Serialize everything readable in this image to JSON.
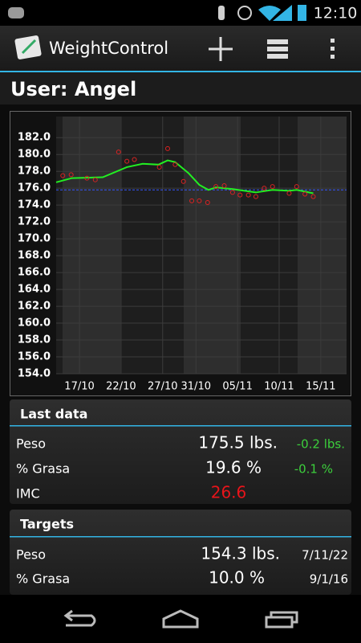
{
  "status_bar": {
    "time": "12:10"
  },
  "app_bar": {
    "title": "WeightControl"
  },
  "user": "User: Angel",
  "chart_data": {
    "type": "line",
    "xlim": [
      14.2,
      49.1
    ],
    "ylim": [
      154,
      184.5
    ],
    "xticks": [
      {
        "value": 17,
        "label": "17/10"
      },
      {
        "value": 22,
        "label": "22/10"
      },
      {
        "value": 27,
        "label": "27/10"
      },
      {
        "value": 31,
        "label": "31/10"
      },
      {
        "value": 36,
        "label": "05/11"
      },
      {
        "value": 41,
        "label": "10/11"
      },
      {
        "value": 46,
        "label": "15/11"
      }
    ],
    "yticks": [
      {
        "value": 154,
        "label": "154.0"
      },
      {
        "value": 156,
        "label": "156.0"
      },
      {
        "value": 158,
        "label": "158.0"
      },
      {
        "value": 160,
        "label": "160.0"
      },
      {
        "value": 162,
        "label": "162.0"
      },
      {
        "value": 164,
        "label": "164.0"
      },
      {
        "value": 166,
        "label": "166.0"
      },
      {
        "value": 168,
        "label": "168.0"
      },
      {
        "value": 170,
        "label": "170.0"
      },
      {
        "value": 172,
        "label": "172.0"
      },
      {
        "value": 174,
        "label": "174.0"
      },
      {
        "value": 176,
        "label": "176.0"
      },
      {
        "value": 178,
        "label": "178.0"
      },
      {
        "value": 180,
        "label": "180.0"
      },
      {
        "value": 182,
        "label": "182.0"
      }
    ],
    "grid": true,
    "reference_line": 175.8,
    "reference_color": "#3355ff",
    "series": [
      {
        "type": "line",
        "color": "#22ee22",
        "x": [
          14.2,
          16.1,
          19.8,
          22.7,
          24.6,
          26.5,
          27.6,
          28.5,
          30.1,
          31.4,
          32.5,
          33.4,
          35.4,
          38.2,
          40.2,
          42.2,
          43.1,
          45.1
        ],
        "values": [
          176.7,
          177.2,
          177.3,
          178.5,
          178.9,
          178.8,
          179.3,
          179.1,
          177.8,
          176.4,
          175.8,
          176.1,
          175.9,
          175.5,
          175.8,
          175.7,
          175.8,
          175.4
        ]
      },
      {
        "type": "scatter",
        "color": "#dd2222",
        "x": [
          15.0,
          16.0,
          17.9,
          18.9,
          21.7,
          22.7,
          23.6,
          26.6,
          27.6,
          28.5,
          29.5,
          30.5,
          31.4,
          32.4,
          33.4,
          34.4,
          35.4,
          36.3,
          37.3,
          38.2,
          39.2,
          40.2,
          42.2,
          43.1,
          44.1,
          45.1
        ],
        "values": [
          177.5,
          177.6,
          177.2,
          177.0,
          180.3,
          179.2,
          179.4,
          178.5,
          180.7,
          178.8,
          176.8,
          174.5,
          174.5,
          174.3,
          176.2,
          176.3,
          175.5,
          175.2,
          175.2,
          175.0,
          176.0,
          176.2,
          175.4,
          176.2,
          175.3,
          175.0
        ]
      }
    ]
  },
  "last_data": {
    "title": "Last data",
    "rows": [
      {
        "label": "Peso",
        "value": "175.5 lbs.",
        "change": "-0.2 lbs."
      },
      {
        "label": "% Grasa",
        "value": "19.6 %",
        "change": "-0.1 %"
      },
      {
        "label": "IMC",
        "value": "26.6"
      }
    ]
  },
  "targets": {
    "title": "Targets",
    "rows": [
      {
        "label": "Peso",
        "value": "154.3 lbs.",
        "date": "7/11/22"
      },
      {
        "label": "% Grasa",
        "value": "10.0 %",
        "date": "9/1/16"
      }
    ]
  }
}
